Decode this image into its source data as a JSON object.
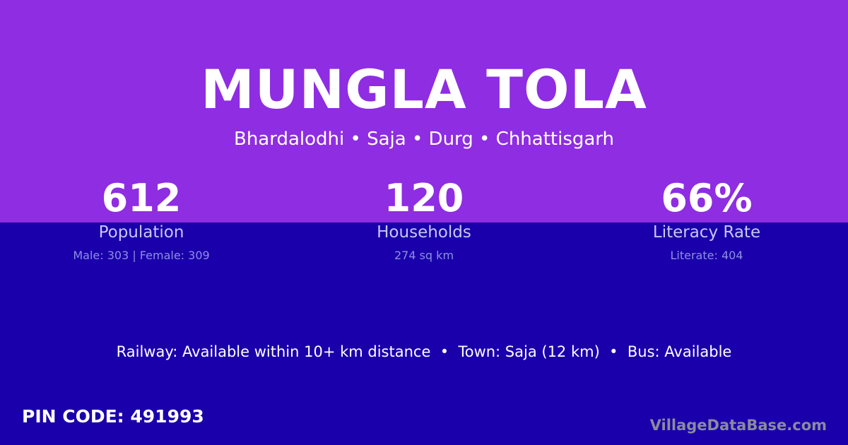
{
  "colors": {
    "top_band": "#8e2de2",
    "bottom_band": "#1a00aa"
  },
  "title": "MUNGLA TOLA",
  "location": "Bhardalodhi • Saja • Durg • Chhattisgarh",
  "stats": [
    {
      "value": "612",
      "label": "Population",
      "detail": "Male: 303 | Female: 309"
    },
    {
      "value": "120",
      "label": "Households",
      "detail": "274 sq km"
    },
    {
      "value": "66%",
      "label": "Literacy Rate",
      "detail": "Literate: 404"
    }
  ],
  "facilities": "Railway: Available within 10+ km distance  •  Town: Saja (12 km)  •  Bus: Available",
  "pin_code": "PIN CODE: 491993",
  "watermark": "VillageDataBase.com"
}
